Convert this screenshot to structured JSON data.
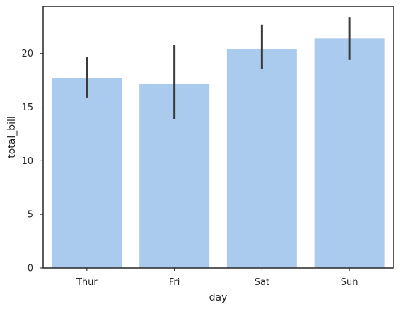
{
  "chart_data": {
    "type": "bar",
    "title": "",
    "xlabel": "day",
    "ylabel": "total_bill",
    "categories": [
      "Thur",
      "Fri",
      "Sat",
      "Sun"
    ],
    "values": [
      17.68,
      17.15,
      20.44,
      21.41
    ],
    "error_low": [
      15.9,
      13.9,
      18.6,
      19.4
    ],
    "error_high": [
      19.7,
      20.8,
      22.7,
      23.4
    ],
    "ylim": [
      0,
      24.4
    ],
    "yticks": [
      0,
      5,
      10,
      15,
      20
    ],
    "ytick_labels": [
      "0",
      "5",
      "10",
      "15",
      "20"
    ],
    "grid": false,
    "legend": "none",
    "bar_color": "#abcbee",
    "errorbar_color": "#3b3b3b",
    "frame_color": "#262626"
  }
}
